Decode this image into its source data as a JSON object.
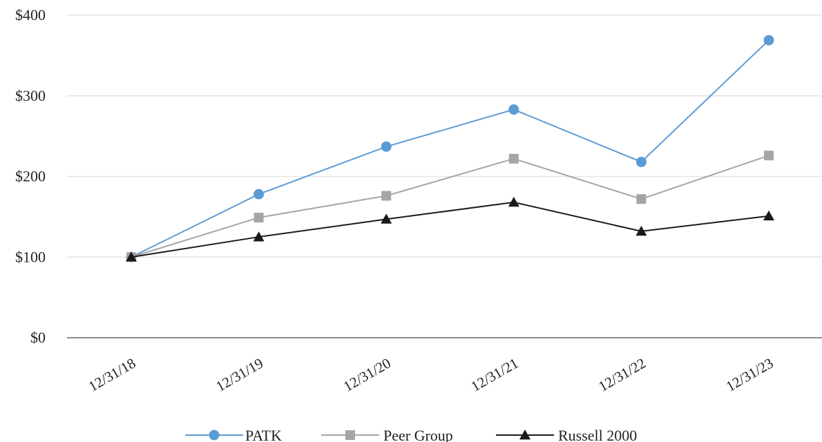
{
  "chart_data": {
    "type": "line",
    "title": "",
    "xlabel": "",
    "ylabel": "",
    "categories": [
      "12/31/18",
      "12/31/19",
      "12/31/20",
      "12/31/21",
      "12/31/22",
      "12/31/23"
    ],
    "ylim": [
      0,
      400
    ],
    "yticks": [
      0,
      100,
      200,
      300,
      400
    ],
    "ytick_labels": [
      "$0",
      "$100",
      "$200",
      "$300",
      "$400"
    ],
    "grid": "horizontal",
    "legend_position": "bottom",
    "series": [
      {
        "name": "PATK",
        "values": [
          100,
          178,
          237,
          283,
          218,
          369
        ],
        "color": "#5b9bd5",
        "marker": "circle"
      },
      {
        "name": "Peer Group",
        "values": [
          100,
          149,
          176,
          222,
          172,
          226
        ],
        "color": "#a5a5a5",
        "marker": "square"
      },
      {
        "name": "Russell 2000",
        "values": [
          100,
          125,
          147,
          168,
          132,
          151
        ],
        "color": "#1a1a1a",
        "marker": "triangle"
      }
    ]
  }
}
